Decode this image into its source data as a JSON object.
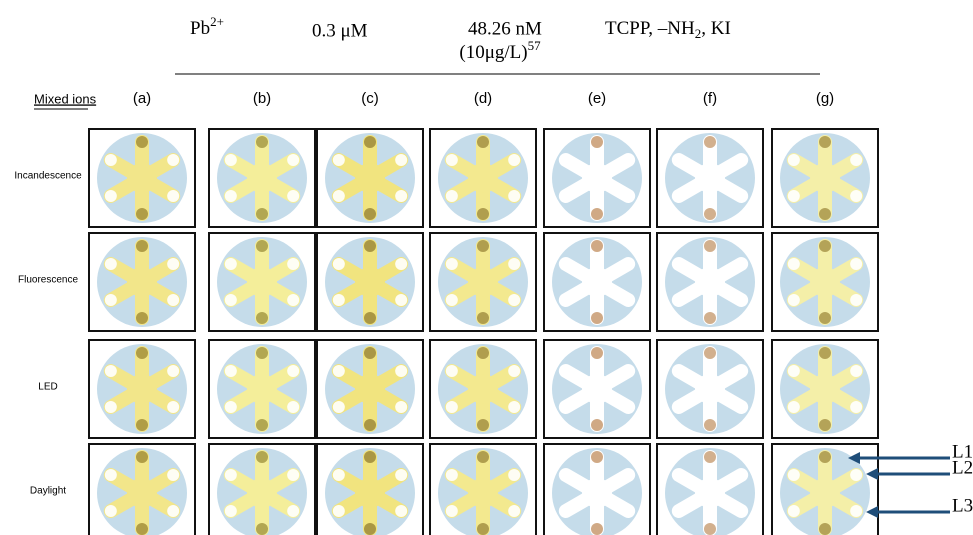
{
  "header": {
    "ion": {
      "symbol": "Pb",
      "charge": "2+"
    },
    "lod": "0.3 μM",
    "limit": {
      "line1": "48.26 nM",
      "line2": "(10μg/L)",
      "ref": "57"
    },
    "probe": {
      "part1": "TCPP, –NH",
      "sub": "2",
      "part2": ", KI"
    }
  },
  "corner": "Mixed ions",
  "columns": [
    "(a)",
    "(b)",
    "(c)",
    "(d)",
    "(e)",
    "(f)",
    "(g)"
  ],
  "rows": [
    "Incandescence",
    "Fluorescence",
    "LED",
    "Daylight"
  ],
  "arrows": [
    "L1",
    "L2",
    "L3"
  ]
}
